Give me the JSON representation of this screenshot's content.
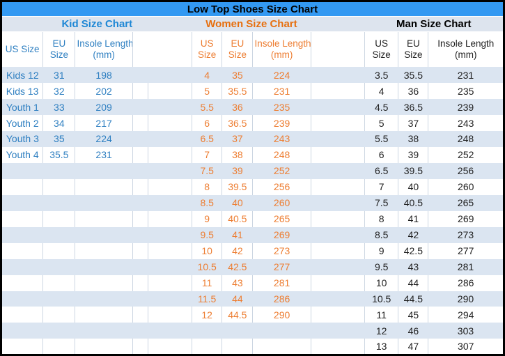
{
  "title": "Low Top Shoes Size Chart",
  "colors": {
    "title_bg": "#3399f2",
    "section_bg": "#dde4ee",
    "stripe": "#dbe5f1",
    "grid": "#ccd6e2",
    "border": "#000000",
    "kid": "#2e7fc1",
    "kid_title": "#1e87d5",
    "women": "#ed7d31",
    "women_title": "#e76f0e",
    "man": "#1f1f1f",
    "man_title": "#000000"
  },
  "chart_data": [
    {
      "type": "table",
      "title": "Kid Size Chart",
      "columns": [
        "US Size",
        "EU Size",
        "Insole Length (mm)"
      ],
      "insole_lines": [
        "Insole Length",
        "(mm)"
      ],
      "rows": [
        [
          "Kids 12",
          "31",
          "198"
        ],
        [
          "Kids 13",
          "32",
          "202"
        ],
        [
          "Youth 1",
          "33",
          "209"
        ],
        [
          "Youth 2",
          "34",
          "217"
        ],
        [
          "Youth 3",
          "35",
          "224"
        ],
        [
          "Youth 4",
          "35.5",
          "231"
        ]
      ]
    },
    {
      "type": "table",
      "title": "Women Size Chart",
      "columns": [
        "US Size",
        "EU Size",
        "Insole Length (mm)"
      ],
      "insole_lines": [
        "Insole Length",
        "(mm)"
      ],
      "rows": [
        [
          "4",
          "35",
          "224"
        ],
        [
          "5",
          "35.5",
          "231"
        ],
        [
          "5.5",
          "36",
          "235"
        ],
        [
          "6",
          "36.5",
          "239"
        ],
        [
          "6.5",
          "37",
          "243"
        ],
        [
          "7",
          "38",
          "248"
        ],
        [
          "7.5",
          "39",
          "252"
        ],
        [
          "8",
          "39.5",
          "256"
        ],
        [
          "8.5",
          "40",
          "260"
        ],
        [
          "9",
          "40.5",
          "265"
        ],
        [
          "9.5",
          "41",
          "269"
        ],
        [
          "10",
          "42",
          "273"
        ],
        [
          "10.5",
          "42.5",
          "277"
        ],
        [
          "11",
          "43",
          "281"
        ],
        [
          "11.5",
          "44",
          "286"
        ],
        [
          "12",
          "44.5",
          "290"
        ]
      ]
    },
    {
      "type": "table",
      "title": "Man Size Chart",
      "columns": [
        "US Size",
        "EU Size",
        "Insole Length (mm)"
      ],
      "insole_lines": [
        "Insole Length",
        "(mm)"
      ],
      "rows": [
        [
          "3.5",
          "35.5",
          "231"
        ],
        [
          "4",
          "36",
          "235"
        ],
        [
          "4.5",
          "36.5",
          "239"
        ],
        [
          "5",
          "37",
          "243"
        ],
        [
          "5.5",
          "38",
          "248"
        ],
        [
          "6",
          "39",
          "252"
        ],
        [
          "6.5",
          "39.5",
          "256"
        ],
        [
          "7",
          "40",
          "260"
        ],
        [
          "7.5",
          "40.5",
          "265"
        ],
        [
          "8",
          "41",
          "269"
        ],
        [
          "8.5",
          "42",
          "273"
        ],
        [
          "9",
          "42.5",
          "277"
        ],
        [
          "9.5",
          "43",
          "281"
        ],
        [
          "10",
          "44",
          "286"
        ],
        [
          "10.5",
          "44.5",
          "290"
        ],
        [
          "11",
          "45",
          "294"
        ],
        [
          "12",
          "46",
          "303"
        ],
        [
          "13",
          "47",
          "307"
        ]
      ]
    }
  ]
}
